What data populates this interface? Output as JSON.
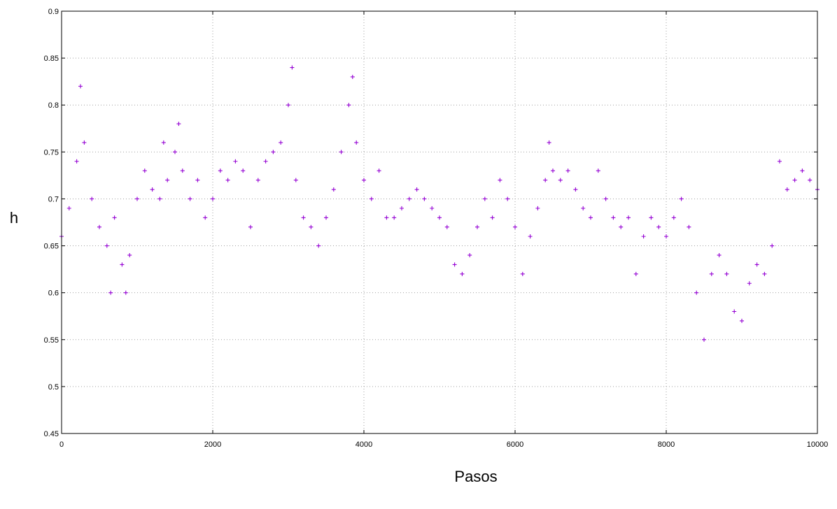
{
  "chart_data": {
    "type": "scatter",
    "title": "",
    "xlabel": "Pasos",
    "ylabel": "h",
    "xlim": [
      0,
      10000
    ],
    "ylim": [
      0.45,
      0.9
    ],
    "x_ticks": [
      "0",
      "2000",
      "4000",
      "6000",
      "8000",
      "10000"
    ],
    "y_ticks": [
      "0.45",
      "0.5",
      "0.55",
      "0.6",
      "0.65",
      "0.7",
      "0.75",
      "0.8",
      "0.85",
      "0.9"
    ],
    "grid": true,
    "marker": "plus",
    "color": "#9400D3",
    "series": [
      {
        "x": [
          0,
          100,
          200,
          250,
          300,
          400,
          500,
          600,
          650,
          700,
          800,
          850,
          900,
          1000,
          1100,
          1200,
          1300,
          1350,
          1400,
          1500,
          1550,
          1600,
          1700,
          1800,
          1900,
          2000,
          2100,
          2200,
          2300,
          2400,
          2500,
          2600,
          2700,
          2800,
          2900,
          3000,
          3050,
          3100,
          3200,
          3300,
          3400,
          3500,
          3600,
          3700,
          3800,
          3850,
          3900,
          4000,
          4100,
          4200,
          4300,
          4400,
          4500,
          4600,
          4700,
          4800,
          4900,
          5000,
          5100,
          5200,
          5300,
          5400,
          5500,
          5600,
          5700,
          5800,
          5900,
          6000,
          6100,
          6200,
          6300,
          6400,
          6450,
          6500,
          6600,
          6700,
          6800,
          6900,
          7000,
          7100,
          7200,
          7300,
          7400,
          7500,
          7600,
          7700,
          7800,
          7900,
          8000,
          8100,
          8200,
          8300,
          8400,
          8500,
          8600,
          8700,
          8800,
          8900,
          9000,
          9100,
          9200,
          9300,
          9400,
          9500,
          9600,
          9700,
          9800,
          9900,
          10000
        ],
        "y": [
          0.66,
          0.69,
          0.74,
          0.82,
          0.76,
          0.7,
          0.67,
          0.65,
          0.6,
          0.68,
          0.63,
          0.6,
          0.64,
          0.7,
          0.73,
          0.71,
          0.7,
          0.76,
          0.72,
          0.75,
          0.78,
          0.73,
          0.7,
          0.72,
          0.68,
          0.7,
          0.73,
          0.72,
          0.74,
          0.73,
          0.67,
          0.72,
          0.74,
          0.75,
          0.76,
          0.8,
          0.84,
          0.72,
          0.68,
          0.67,
          0.65,
          0.68,
          0.71,
          0.75,
          0.8,
          0.83,
          0.76,
          0.72,
          0.7,
          0.73,
          0.68,
          0.68,
          0.69,
          0.7,
          0.71,
          0.7,
          0.69,
          0.68,
          0.67,
          0.63,
          0.62,
          0.64,
          0.67,
          0.7,
          0.68,
          0.72,
          0.7,
          0.67,
          0.62,
          0.66,
          0.69,
          0.72,
          0.76,
          0.73,
          0.72,
          0.73,
          0.71,
          0.69,
          0.68,
          0.73,
          0.7,
          0.68,
          0.67,
          0.68,
          0.62,
          0.66,
          0.68,
          0.67,
          0.66,
          0.68,
          0.7,
          0.67,
          0.6,
          0.55,
          0.62,
          0.64,
          0.62,
          0.58,
          0.57,
          0.61,
          0.63,
          0.62,
          0.65,
          0.74,
          0.71,
          0.72,
          0.73,
          0.72,
          0.71
        ]
      }
    ]
  }
}
